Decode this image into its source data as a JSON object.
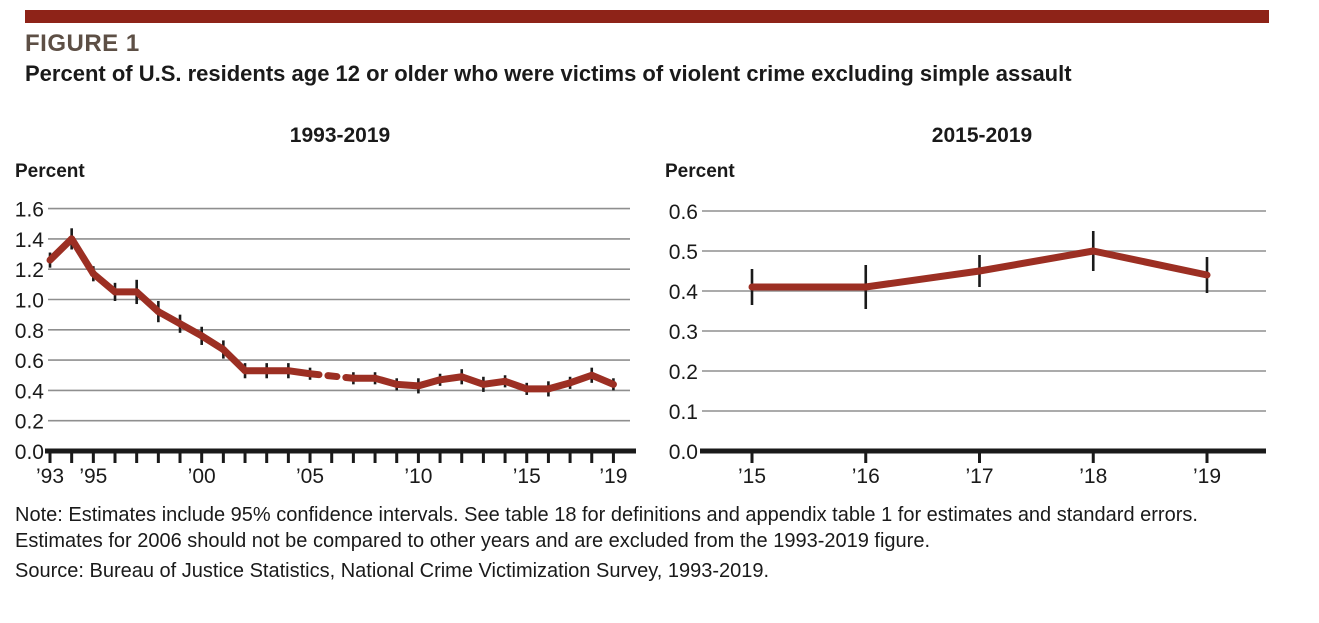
{
  "header": {
    "figure_label": "FIGURE 1",
    "title": "Percent of U.S. residents age 12 or older who were victims of violent crime excluding simple assault"
  },
  "footer": {
    "note_line1": "Note: Estimates include 95% confidence intervals. See table 18 for definitions and appendix table 1 for estimates and standard errors.",
    "note_line2": "Estimates for 2006 should not be compared to other years and are excluded from the 1993-2019 figure.",
    "source": "Source: Bureau of Justice Statistics, National Crime Victimization Survey, 1993-2019."
  },
  "colors": {
    "accent_bar_red": "#8e2318",
    "line_red": "#9c2f23",
    "grid_gray": "#8f8f8f",
    "axis_black": "#1a1a1a",
    "figure_label_brown": "#5d4f45",
    "text_black": "#231f20"
  },
  "chart_data": [
    {
      "type": "line",
      "title": "1993-2019",
      "ylabel": "Percent",
      "ylim": [
        0.0,
        1.6
      ],
      "ytick_step": 0.2,
      "grid": true,
      "legend": "none",
      "excluded_year": 2006,
      "dashed_gap_between": [
        2005,
        2007
      ],
      "xtick_labels": {
        "1993": "’93",
        "1995": "’95",
        "2000": "’00",
        "2005": "’05",
        "2010": "’10",
        "2015": "’15",
        "2019": "’19"
      },
      "series": [
        {
          "name": "Violent crime excluding simple assault",
          "x": [
            1993,
            1994,
            1995,
            1996,
            1997,
            1998,
            1999,
            2000,
            2001,
            2002,
            2003,
            2004,
            2005,
            2007,
            2008,
            2009,
            2010,
            2011,
            2012,
            2013,
            2014,
            2015,
            2016,
            2017,
            2018,
            2019
          ],
          "values": [
            1.26,
            1.4,
            1.17,
            1.05,
            1.05,
            0.92,
            0.84,
            0.76,
            0.67,
            0.53,
            0.53,
            0.53,
            0.51,
            0.48,
            0.48,
            0.44,
            0.43,
            0.47,
            0.49,
            0.44,
            0.46,
            0.41,
            0.41,
            0.45,
            0.5,
            0.44
          ],
          "ci_half": [
            0.05,
            0.07,
            0.05,
            0.06,
            0.08,
            0.07,
            0.06,
            0.06,
            0.06,
            0.05,
            0.05,
            0.05,
            0.04,
            0.04,
            0.04,
            0.04,
            0.05,
            0.04,
            0.05,
            0.05,
            0.04,
            0.04,
            0.05,
            0.04,
            0.05,
            0.04
          ]
        }
      ]
    },
    {
      "type": "line",
      "title": "2015-2019",
      "ylabel": "Percent",
      "ylim": [
        0.0,
        0.6
      ],
      "ytick_step": 0.1,
      "grid": true,
      "legend": "none",
      "xtick_labels": {
        "2015": "’15",
        "2016": "’16",
        "2017": "’17",
        "2018": "’18",
        "2019": "’19"
      },
      "series": [
        {
          "name": "Violent crime excluding simple assault",
          "x": [
            2015,
            2016,
            2017,
            2018,
            2019
          ],
          "values": [
            0.41,
            0.41,
            0.45,
            0.5,
            0.44
          ],
          "ci_half": [
            0.045,
            0.055,
            0.04,
            0.05,
            0.045
          ]
        }
      ]
    }
  ]
}
